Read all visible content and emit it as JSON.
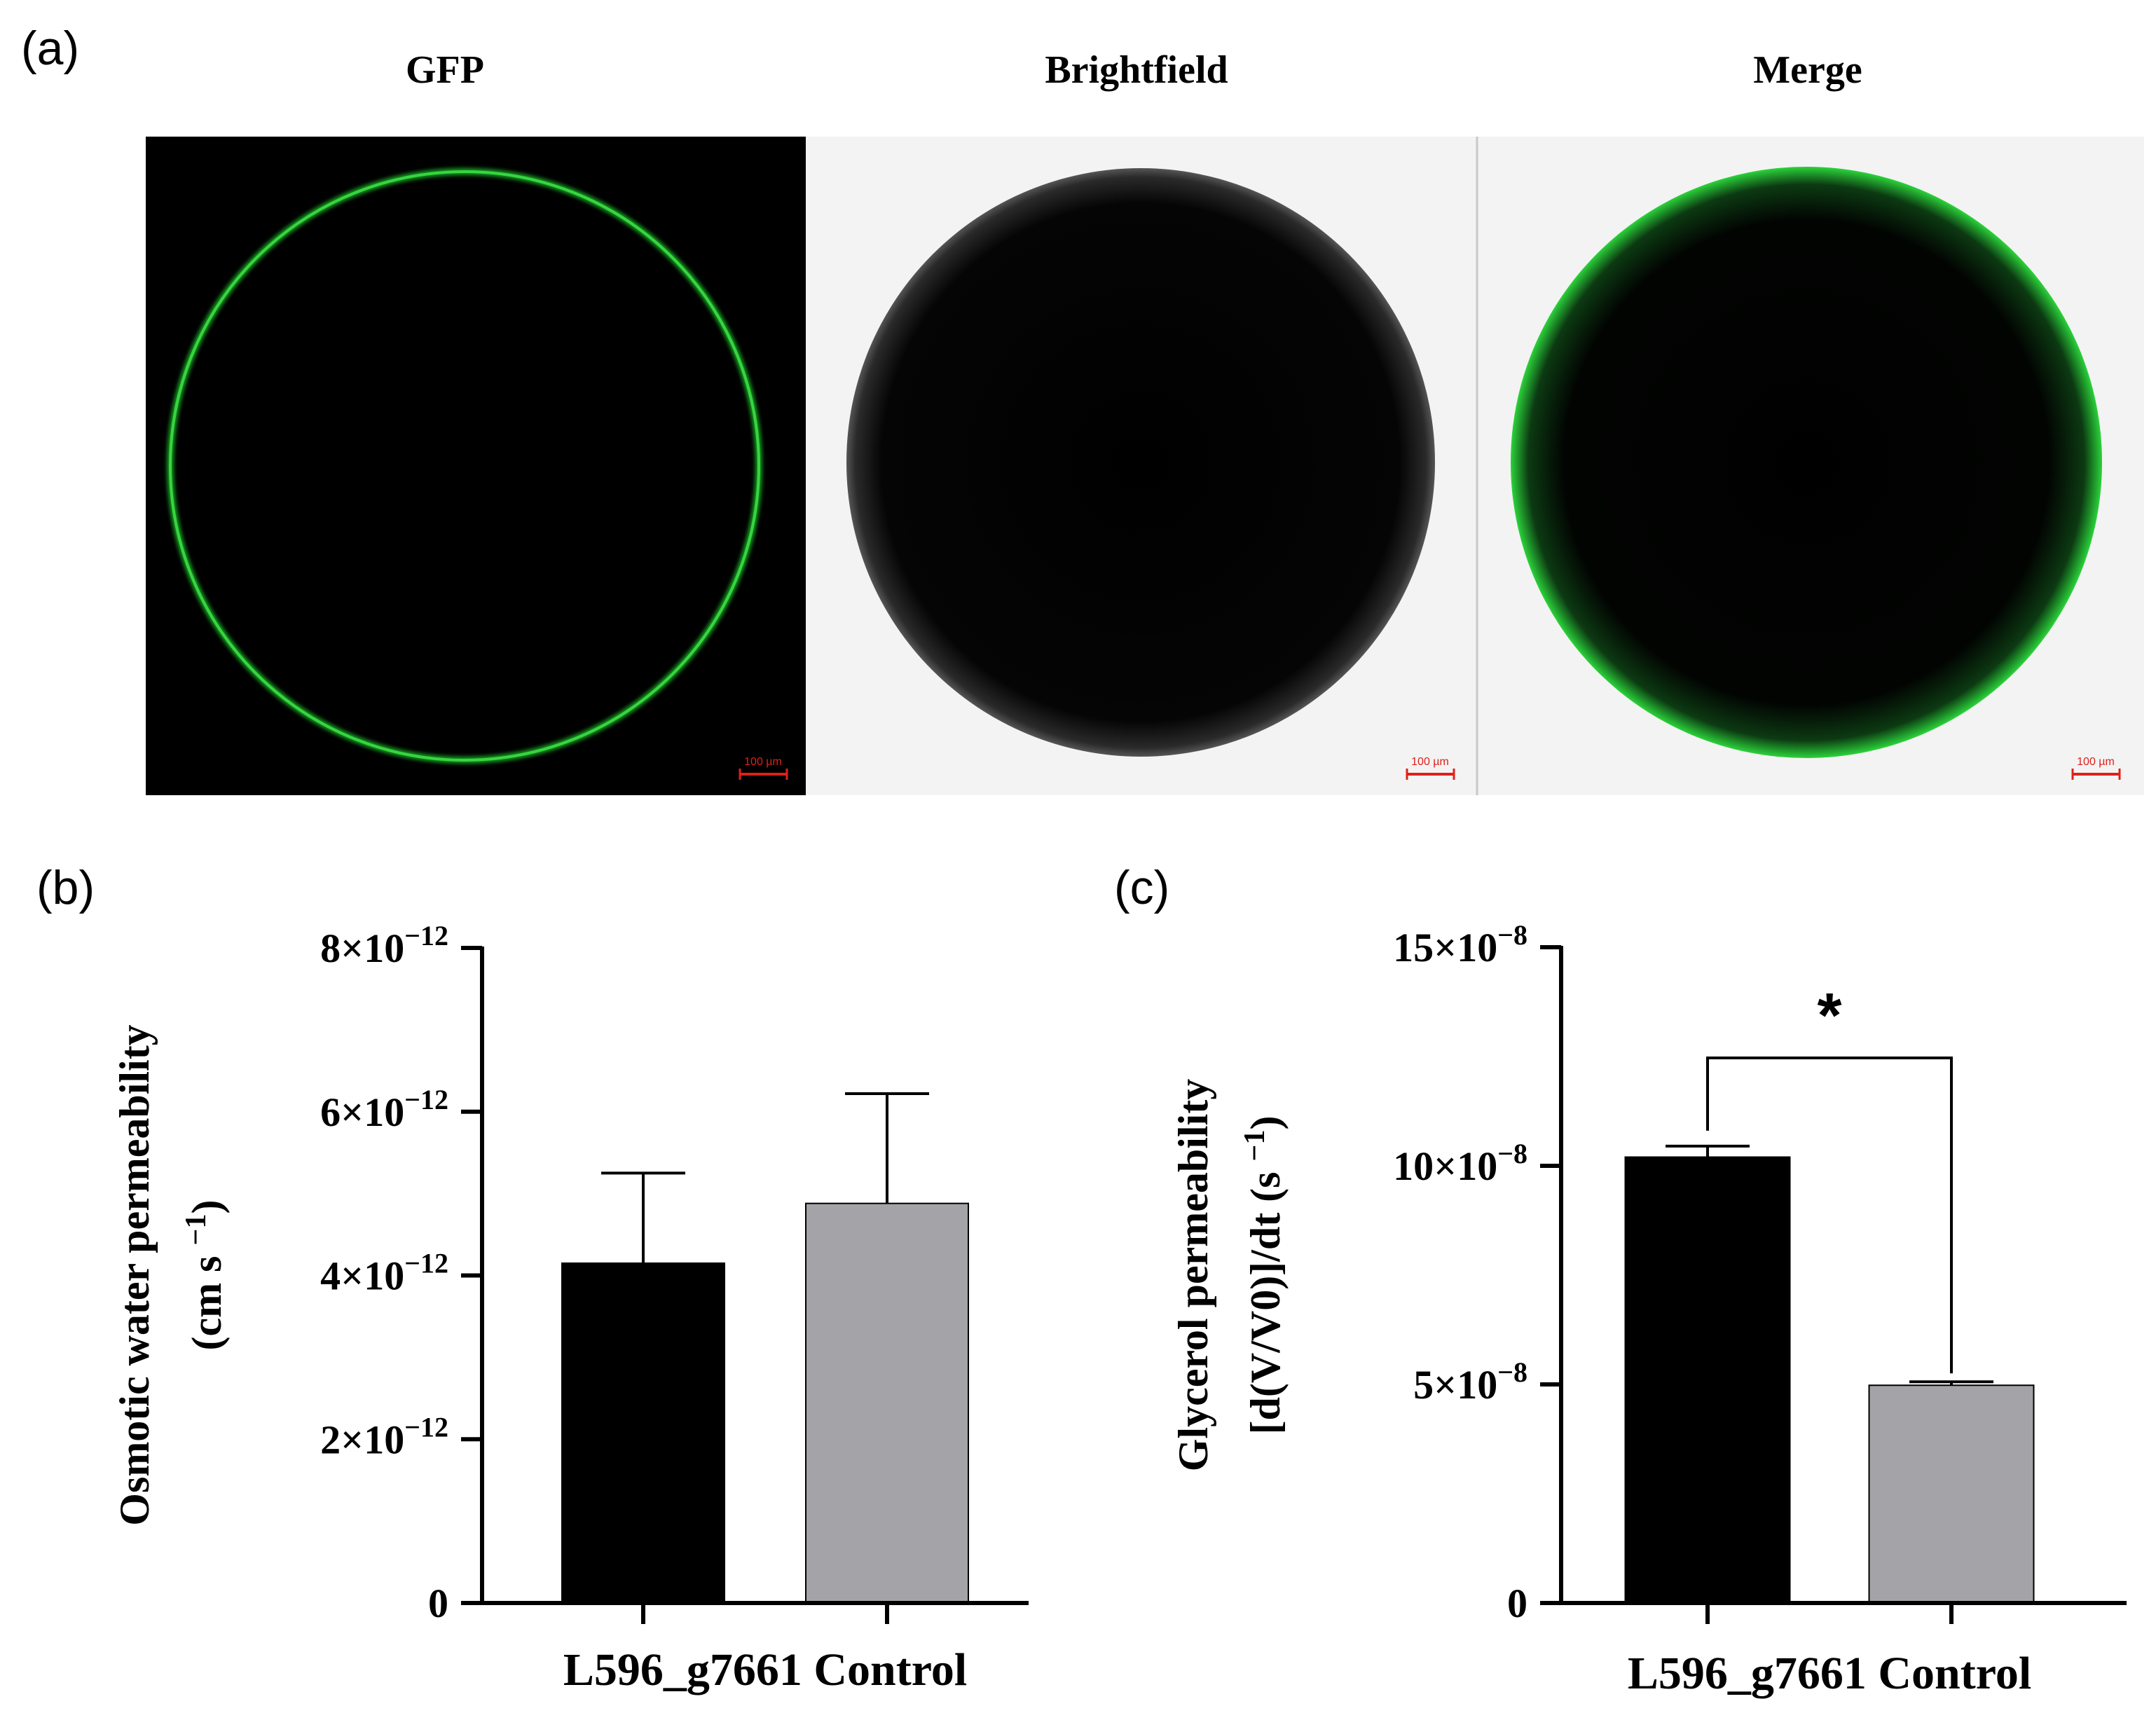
{
  "figure": {
    "panel_a_label": "(a)",
    "panel_b_label": "(b)",
    "panel_c_label": "(c)"
  },
  "images": [
    {
      "title": "GFP",
      "scale_bar": "100 µm"
    },
    {
      "title": "Brightfield",
      "scale_bar": "100 µm"
    },
    {
      "title": "Merge",
      "scale_bar": "100 µm"
    }
  ],
  "colors": {
    "bar_sample": "#000000",
    "bar_control": "#a3a3a8",
    "gfp_ring": "#1fbf2a",
    "scale_bar": "#e0201a"
  },
  "chart_data": [
    {
      "type": "bar",
      "panel": "(b)",
      "categories": [
        "L596_g7661",
        "Control"
      ],
      "values": [
        4.15e-12,
        4.88e-12
      ],
      "error_upper": [
        5.25e-12,
        6.22e-12
      ],
      "ylabel_line1": "Osmotic water permeability",
      "ylabel_line2": "(cm s",
      "ylabel_sup": "−1",
      "ylabel_close": ")",
      "ylim": [
        0,
        8e-12
      ],
      "yticks": [
        {
          "value": 0,
          "mantissa": "0",
          "exponent": ""
        },
        {
          "value": 2e-12,
          "mantissa": "2×10",
          "exponent": "−12"
        },
        {
          "value": 4e-12,
          "mantissa": "4×10",
          "exponent": "−12"
        },
        {
          "value": 6e-12,
          "mantissa": "6×10",
          "exponent": "−12"
        },
        {
          "value": 8e-12,
          "mantissa": "8×10",
          "exponent": "−12"
        }
      ],
      "colors": [
        "#000000",
        "#a3a3a8"
      ]
    },
    {
      "type": "bar",
      "panel": "(c)",
      "categories": [
        "L596_g7661",
        "Control"
      ],
      "values": [
        1.02e-07,
        4.98e-08
      ],
      "error_upper": [
        1.045e-07,
        5.06e-08
      ],
      "significance": "*",
      "ylabel_line1": "Glycerol permeability",
      "ylabel_line2": "[d(V/V0)]/dt (s",
      "ylabel_sup": "−1",
      "ylabel_close": ")",
      "ylim": [
        0,
        1.5e-07
      ],
      "yticks": [
        {
          "value": 0,
          "mantissa": "0",
          "exponent": ""
        },
        {
          "value": 5e-08,
          "mantissa": "5×10",
          "exponent": "−8"
        },
        {
          "value": 1e-07,
          "mantissa": "10×10",
          "exponent": "−8"
        },
        {
          "value": 1.5e-07,
          "mantissa": "15×10",
          "exponent": "−8"
        }
      ],
      "colors": [
        "#000000",
        "#a3a3a8"
      ]
    }
  ]
}
